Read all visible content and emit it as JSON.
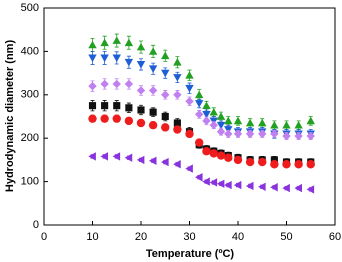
{
  "chart_data": {
    "type": "scatter",
    "x_label": "Temperature (ºC)",
    "y_label": "Hydrodynamic diameter (nm)",
    "x": [
      10,
      12.5,
      15,
      17.5,
      20,
      22.5,
      25,
      27.5,
      30,
      32,
      33.5,
      35,
      36.5,
      38,
      40,
      42.5,
      45,
      47.5,
      50,
      52.5,
      55
    ],
    "series": [
      {
        "color": "#22a022",
        "marker": "triangle-up",
        "values": [
          415,
          420,
          425,
          420,
          410,
          400,
          390,
          375,
          345,
          300,
          275,
          260,
          250,
          240,
          240,
          235,
          235,
          230,
          230,
          230,
          240
        ],
        "errors": [
          15,
          15,
          15,
          15,
          14,
          14,
          13,
          13,
          12,
          12,
          10,
          10,
          10,
          10,
          10,
          10,
          10,
          10,
          10,
          10,
          10
        ]
      },
      {
        "color": "#1f5fd6",
        "marker": "triangle-down",
        "values": [
          385,
          385,
          385,
          375,
          370,
          360,
          350,
          340,
          315,
          280,
          255,
          240,
          230,
          220,
          215,
          215,
          215,
          210,
          210,
          210,
          210
        ],
        "errors": [
          15,
          15,
          14,
          14,
          13,
          13,
          12,
          12,
          12,
          10,
          10,
          10,
          10,
          10,
          10,
          10,
          10,
          10,
          10,
          10,
          10
        ]
      },
      {
        "color": "#c080f0",
        "marker": "diamond",
        "values": [
          320,
          325,
          325,
          325,
          310,
          310,
          300,
          300,
          285,
          255,
          240,
          230,
          215,
          210,
          210,
          210,
          210,
          210,
          205,
          205,
          205
        ],
        "errors": [
          12,
          12,
          12,
          12,
          11,
          11,
          10,
          10,
          10,
          9,
          9,
          8,
          8,
          8,
          8,
          8,
          8,
          8,
          8,
          8,
          8
        ]
      },
      {
        "color": "#111111",
        "marker": "square",
        "values": [
          275,
          275,
          275,
          270,
          265,
          260,
          250,
          235,
          215,
          185,
          175,
          170,
          165,
          160,
          155,
          150,
          150,
          150,
          145,
          145,
          145
        ],
        "errors": [
          12,
          12,
          12,
          11,
          11,
          10,
          10,
          10,
          10,
          8,
          8,
          8,
          8,
          8,
          8,
          8,
          8,
          8,
          8,
          8,
          8
        ]
      },
      {
        "color": "#ee1c1c",
        "marker": "circle",
        "values": [
          245,
          245,
          245,
          240,
          235,
          230,
          225,
          220,
          210,
          190,
          170,
          165,
          160,
          155,
          150,
          145,
          145,
          140,
          140,
          140,
          140
        ],
        "errors": [
          8,
          8,
          8,
          8,
          8,
          8,
          8,
          8,
          8,
          7,
          7,
          7,
          7,
          7,
          7,
          7,
          7,
          7,
          7,
          7,
          7
        ]
      },
      {
        "color": "#8833dd",
        "marker": "triangle-left",
        "values": [
          158,
          158,
          158,
          155,
          150,
          148,
          145,
          140,
          130,
          110,
          100,
          98,
          95,
          92,
          92,
          90,
          88,
          87,
          85,
          85,
          82
        ],
        "errors": [
          4,
          4,
          4,
          4,
          4,
          4,
          4,
          4,
          4,
          4,
          4,
          4,
          4,
          4,
          4,
          4,
          4,
          4,
          4,
          4,
          4
        ]
      }
    ],
    "xlim": [
      0,
      60
    ],
    "xticks": [
      0,
      10,
      20,
      30,
      40,
      50,
      60
    ],
    "ylim": [
      0,
      500
    ],
    "yticks": [
      0,
      100,
      200,
      300,
      400,
      500
    ]
  }
}
